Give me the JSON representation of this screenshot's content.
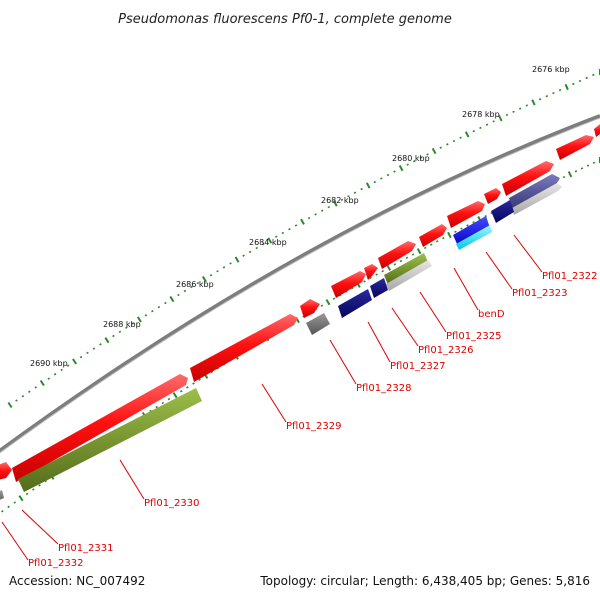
{
  "title": "Pseudomonas fluorescens Pf0-1, complete genome",
  "footer": {
    "accession": "Accession: NC_007492",
    "summary": "Topology: circular; Length: 6,438,405 bp; Genes: 5,816"
  },
  "scale_labels": [
    "2676 kbp",
    "2678 kbp",
    "2680 kbp",
    "2682 kbp",
    "2684 kbp",
    "2686 kbp",
    "2688 kbp",
    "2690 kbp"
  ],
  "gene_labels": [
    "Pfl01_2322",
    "Pfl01_2323",
    "benD",
    "Pfl01_2325",
    "Pfl01_2326",
    "Pfl01_2327",
    "Pfl01_2328",
    "Pfl01_2329",
    "Pfl01_2330",
    "Pfl01_2331",
    "Pfl01_2332"
  ],
  "colors": {
    "backbone": "#8a8a8a",
    "gene_red": "#ff1010",
    "gene_olive": "#6b8e23",
    "gene_navy": "#0b0b7a",
    "gene_blue": "#1a1aff",
    "gene_cyan": "#00e5ff",
    "gene_gray": "#6e6e6e",
    "gene_slate": "#4a4a90",
    "label_red": "#e00000",
    "tick_green": "#2a8a2a"
  }
}
